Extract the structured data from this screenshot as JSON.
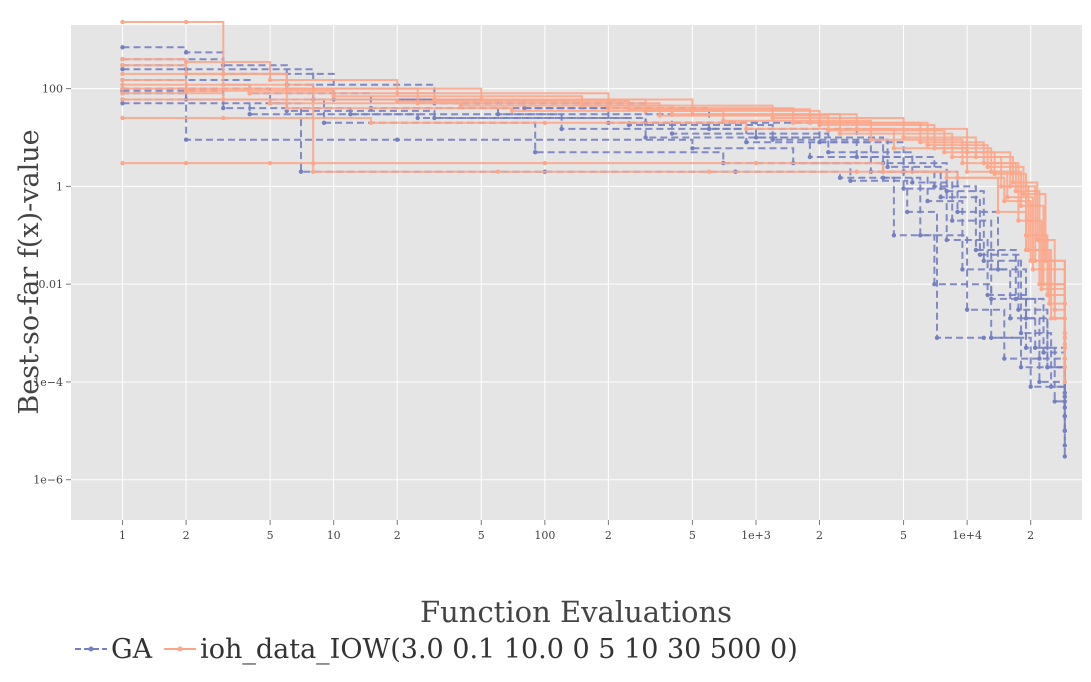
{
  "chart_data": {
    "type": "line",
    "title": "",
    "xlabel": "Function Evaluations",
    "ylabel": "Best-so-far f(x)-value",
    "x_scale": "log",
    "y_scale": "log",
    "xlim": [
      0.57,
      35000
    ],
    "ylim": [
      1.5e-07,
      2000
    ],
    "grid": true,
    "legend_position": "bottom-left",
    "x_ticks": [
      {
        "value": 1,
        "label": "1"
      },
      {
        "value": 2,
        "label": "2"
      },
      {
        "value": 5,
        "label": "5"
      },
      {
        "value": 10,
        "label": "10"
      },
      {
        "value": 20,
        "label": "2"
      },
      {
        "value": 50,
        "label": "5"
      },
      {
        "value": 100,
        "label": "100"
      },
      {
        "value": 200,
        "label": "2"
      },
      {
        "value": 500,
        "label": "5"
      },
      {
        "value": 1000,
        "label": "1e+3"
      },
      {
        "value": 2000,
        "label": "2"
      },
      {
        "value": 5000,
        "label": "5"
      },
      {
        "value": 10000,
        "label": "1e+4"
      },
      {
        "value": 20000,
        "label": "2"
      },
      {
        "value": 50000,
        "label": "5"
      }
    ],
    "y_ticks": [
      {
        "value": 100,
        "label": "100"
      },
      {
        "value": 1,
        "label": "1"
      },
      {
        "value": 0.01,
        "label": "0.01"
      },
      {
        "value": 0.0001,
        "label": "1e−4"
      },
      {
        "value": 1e-06,
        "label": "1e−6"
      }
    ],
    "series": [
      {
        "name": "GA",
        "color": "#7580c0",
        "dash": "dashed",
        "runs": [
          [
            [
              1,
              700
            ],
            [
              2,
              550
            ],
            [
              3,
              300
            ],
            [
              6,
              120
            ],
            [
              30,
              50
            ],
            [
              300,
              20
            ],
            [
              2000,
              8
            ],
            [
              5000,
              2
            ],
            [
              9000,
              0.3
            ],
            [
              14000,
              0.02
            ],
            [
              19000,
              0.002
            ],
            [
              24000,
              0.0002
            ],
            [
              29000,
              2e-05
            ]
          ],
          [
            [
              1,
              400
            ],
            [
              3,
              200
            ],
            [
              10,
              60
            ],
            [
              80,
              40
            ],
            [
              600,
              15
            ],
            [
              3000,
              4
            ],
            [
              7000,
              1
            ],
            [
              11000,
              0.05
            ],
            [
              17000,
              0.005
            ],
            [
              23000,
              0.0004
            ],
            [
              29000,
              5e-05
            ]
          ],
          [
            [
              1,
              250
            ],
            [
              2,
              9
            ],
            [
              20,
              9
            ],
            [
              500,
              6
            ],
            [
              1500,
              3
            ],
            [
              4000,
              1.5
            ],
            [
              6000,
              0.1
            ],
            [
              10000,
              0.003
            ],
            [
              15000,
              0.0003
            ],
            [
              22000,
              0.0001
            ],
            [
              29000,
              2e-05
            ]
          ],
          [
            [
              1,
              150
            ],
            [
              4,
              80
            ],
            [
              15,
              40
            ],
            [
              200,
              20
            ],
            [
              1000,
              10
            ],
            [
              4000,
              3
            ],
            [
              8000,
              0.8
            ],
            [
              12000,
              0.03
            ],
            [
              18000,
              0.001
            ],
            [
              25000,
              8e-05
            ],
            [
              29000,
              1e-05
            ]
          ],
          [
            [
              1,
              100
            ],
            [
              5,
              50
            ],
            [
              7,
              2
            ],
            [
              100,
              2
            ],
            [
              800,
              2
            ],
            [
              2500,
              1.5
            ],
            [
              4500,
              0.1
            ],
            [
              7000,
              0.01
            ],
            [
              13000,
              0.0008
            ],
            [
              20000,
              8e-05
            ],
            [
              29000,
              5e-06
            ]
          ],
          [
            [
              1,
              90
            ],
            [
              3,
              40
            ],
            [
              12,
              30
            ],
            [
              120,
              15
            ],
            [
              900,
              8
            ],
            [
              3500,
              2
            ],
            [
              6500,
              0.5
            ],
            [
              9500,
              0.02
            ],
            [
              16000,
              0.002
            ],
            [
              22000,
              0.0003
            ],
            [
              29000,
              3e-05
            ]
          ],
          [
            [
              1,
              300
            ],
            [
              2,
              250
            ],
            [
              8,
              60
            ],
            [
              60,
              30
            ],
            [
              400,
              12
            ],
            [
              2200,
              5
            ],
            [
              5500,
              1.2
            ],
            [
              8500,
              0.2
            ],
            [
              13000,
              0.005
            ],
            [
              21000,
              0.0005
            ],
            [
              29000,
              6e-05
            ]
          ],
          [
            [
              1,
              60
            ],
            [
              4,
              30
            ],
            [
              25,
              25
            ],
            [
              250,
              18
            ],
            [
              1200,
              9
            ],
            [
              4200,
              2.5
            ],
            [
              7500,
              0.6
            ],
            [
              11500,
              0.04
            ],
            [
              17500,
              0.003
            ],
            [
              24000,
              0.0002
            ],
            [
              29000,
              1e-05
            ]
          ],
          [
            [
              1,
              50
            ],
            [
              6,
              35
            ],
            [
              30,
              25
            ],
            [
              300,
              10
            ],
            [
              1800,
              4
            ],
            [
              5000,
              0.9
            ],
            [
              8000,
              0.08
            ],
            [
              12500,
              0.006
            ],
            [
              19000,
              0.0005
            ],
            [
              26000,
              4e-05
            ],
            [
              29000,
              3e-06
            ]
          ],
          [
            [
              1,
              80
            ],
            [
              2,
              60
            ],
            [
              9,
              20
            ],
            [
              90,
              5
            ],
            [
              700,
              3
            ],
            [
              2800,
              1.3
            ],
            [
              5200,
              0.3
            ],
            [
              7200,
              0.0008
            ],
            [
              12000,
              0.0008
            ],
            [
              18000,
              0.0002
            ],
            [
              29000,
              4e-05
            ]
          ]
        ]
      },
      {
        "name": "ioh_data_IOW(3.0 0.1 10.0 0 5 10 30 500 0)",
        "color": "#fca68a",
        "dash": "solid",
        "runs": [
          [
            [
              1,
              2300
            ],
            [
              2,
              2300
            ],
            [
              3,
              200
            ],
            [
              6,
              100
            ],
            [
              50,
              60
            ],
            [
              500,
              30
            ],
            [
              3000,
              15
            ],
            [
              10000,
              5
            ],
            [
              16000,
              1
            ],
            [
              21000,
              0.03
            ],
            [
              26000,
              0.002
            ],
            [
              29000,
              0.0005
            ]
          ],
          [
            [
              1,
              3
            ],
            [
              2,
              3
            ],
            [
              5,
              3
            ],
            [
              8,
              3
            ],
            [
              100,
              3
            ],
            [
              1000,
              3
            ],
            [
              4000,
              2
            ],
            [
              9000,
              1.5
            ],
            [
              15000,
              0.5
            ],
            [
              20000,
              0.03
            ],
            [
              29000,
              0.001
            ]
          ],
          [
            [
              1,
              400
            ],
            [
              2,
              350
            ],
            [
              5,
              150
            ],
            [
              20,
              80
            ],
            [
              200,
              40
            ],
            [
              1500,
              20
            ],
            [
              6000,
              8
            ],
            [
              12000,
              3
            ],
            [
              17000,
              0.8
            ],
            [
              22000,
              0.01
            ],
            [
              29000,
              0.0008
            ]
          ],
          [
            [
              1,
              200
            ],
            [
              3,
              120
            ],
            [
              8,
              2
            ],
            [
              60,
              2
            ],
            [
              600,
              2
            ],
            [
              3000,
              2
            ],
            [
              8000,
              1.5
            ],
            [
              14000,
              0.3
            ],
            [
              19000,
              0.05
            ],
            [
              25000,
              0.002
            ],
            [
              29000,
              0.0001
            ]
          ],
          [
            [
              1,
              100
            ],
            [
              4,
              80
            ],
            [
              30,
              60
            ],
            [
              300,
              35
            ],
            [
              2000,
              18
            ],
            [
              7000,
              6
            ],
            [
              13000,
              2
            ],
            [
              18000,
              0.4
            ],
            [
              23000,
              0.01
            ],
            [
              29000,
              0.0005
            ]
          ],
          [
            [
              1,
              150
            ],
            [
              2,
              90
            ],
            [
              10,
              70
            ],
            [
              150,
              45
            ],
            [
              1200,
              25
            ],
            [
              5000,
              10
            ],
            [
              11000,
              4
            ],
            [
              16500,
              1.2
            ],
            [
              21500,
              0.08
            ],
            [
              26000,
              0.003
            ],
            [
              29000,
              0.0003
            ]
          ],
          [
            [
              1,
              25
            ],
            [
              3,
              25
            ],
            [
              15,
              20
            ],
            [
              100,
              20
            ],
            [
              900,
              15
            ],
            [
              4500,
              6
            ],
            [
              10000,
              2
            ],
            [
              15500,
              0.6
            ],
            [
              20500,
              0.02
            ],
            [
              29000,
              0.002
            ]
          ],
          [
            [
              1,
              60
            ],
            [
              5,
              50
            ],
            [
              40,
              45
            ],
            [
              400,
              30
            ],
            [
              2500,
              12
            ],
            [
              8500,
              4
            ],
            [
              14500,
              1
            ],
            [
              19500,
              0.05
            ],
            [
              24500,
              0.004
            ],
            [
              29000,
              0.0006
            ]
          ],
          [
            [
              1,
              300
            ],
            [
              2,
              200
            ],
            [
              6,
              40
            ],
            [
              70,
              35
            ],
            [
              700,
              22
            ],
            [
              3500,
              9
            ],
            [
              9500,
              3
            ],
            [
              17500,
              0.2
            ],
            [
              22500,
              0.008
            ],
            [
              29000,
              0.0002
            ]
          ],
          [
            [
              1,
              80
            ],
            [
              3,
              60
            ],
            [
              20,
              55
            ],
            [
              250,
              38
            ],
            [
              1800,
              20
            ],
            [
              6500,
              7
            ],
            [
              12500,
              2.5
            ],
            [
              18500,
              0.7
            ],
            [
              23500,
              0.03
            ],
            [
              29000,
              0.004
            ]
          ],
          [
            [
              1,
              120
            ],
            [
              4,
              100
            ],
            [
              25,
              50
            ],
            [
              350,
              28
            ],
            [
              2200,
              14
            ],
            [
              7800,
              5
            ],
            [
              13500,
              1.8
            ],
            [
              19000,
              0.1
            ],
            [
              24000,
              0.006
            ],
            [
              29000,
              0.0003
            ]
          ]
        ]
      }
    ]
  }
}
